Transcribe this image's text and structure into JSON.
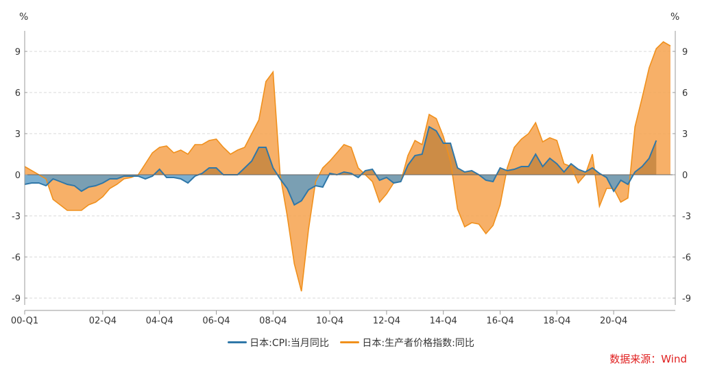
{
  "chart_data": {
    "type": "area",
    "title": "",
    "left_unit": "%",
    "right_unit": "%",
    "xlabel": "",
    "ylabel": "",
    "ylim": [
      -9.5,
      10.5
    ],
    "yticks": [
      9,
      6,
      3,
      0,
      -3,
      -6,
      -9
    ],
    "x_ticks": [
      "00-Q1",
      "02-Q4",
      "04-Q4",
      "06-Q4",
      "08-Q4",
      "10-Q4",
      "12-Q4",
      "14-Q4",
      "16-Q4",
      "18-Q4",
      "20-Q4"
    ],
    "grid": true,
    "legend_position": "bottom",
    "colors": {
      "cpi": "#2f77a8",
      "ppi": "#f0901c",
      "ppi_fill": "#f6a24e",
      "cpi_fill": "#5a9bc6",
      "overlap": "#c98a45"
    },
    "series": [
      {
        "name": "日本:CPI:当月同比",
        "points": [
          [
            2000.0,
            -0.7
          ],
          [
            2000.25,
            -0.6
          ],
          [
            2000.5,
            -0.6
          ],
          [
            2000.75,
            -0.8
          ],
          [
            2001.0,
            -0.3
          ],
          [
            2001.25,
            -0.5
          ],
          [
            2001.5,
            -0.7
          ],
          [
            2001.75,
            -0.8
          ],
          [
            2002.0,
            -1.2
          ],
          [
            2002.25,
            -0.9
          ],
          [
            2002.5,
            -0.8
          ],
          [
            2002.75,
            -0.6
          ],
          [
            2003.0,
            -0.3
          ],
          [
            2003.25,
            -0.3
          ],
          [
            2003.5,
            -0.1
          ],
          [
            2003.75,
            -0.1
          ],
          [
            2004.0,
            -0.1
          ],
          [
            2004.25,
            -0.3
          ],
          [
            2004.5,
            -0.1
          ],
          [
            2004.75,
            0.4
          ],
          [
            2005.0,
            -0.2
          ],
          [
            2005.25,
            -0.2
          ],
          [
            2005.5,
            -0.3
          ],
          [
            2005.75,
            -0.6
          ],
          [
            2006.0,
            -0.1
          ],
          [
            2006.25,
            0.1
          ],
          [
            2006.5,
            0.5
          ],
          [
            2006.75,
            0.5
          ],
          [
            2007.0,
            0.0
          ],
          [
            2007.25,
            0.0
          ],
          [
            2007.5,
            0.0
          ],
          [
            2007.75,
            0.5
          ],
          [
            2008.0,
            1.0
          ],
          [
            2008.25,
            2.0
          ],
          [
            2008.5,
            2.0
          ],
          [
            2008.75,
            0.5
          ],
          [
            2009.0,
            -0.3
          ],
          [
            2009.25,
            -1.0
          ],
          [
            2009.5,
            -2.2
          ],
          [
            2009.75,
            -1.9
          ],
          [
            2010.0,
            -1.1
          ],
          [
            2010.25,
            -0.8
          ],
          [
            2010.5,
            -0.9
          ],
          [
            2010.75,
            0.1
          ],
          [
            2011.0,
            0.0
          ],
          [
            2011.25,
            0.2
          ],
          [
            2011.5,
            0.1
          ],
          [
            2011.75,
            -0.2
          ],
          [
            2012.0,
            0.3
          ],
          [
            2012.25,
            0.4
          ],
          [
            2012.5,
            -0.4
          ],
          [
            2012.75,
            -0.2
          ],
          [
            2013.0,
            -0.6
          ],
          [
            2013.25,
            -0.5
          ],
          [
            2013.5,
            0.7
          ],
          [
            2013.75,
            1.4
          ],
          [
            2014.0,
            1.5
          ],
          [
            2014.25,
            3.5
          ],
          [
            2014.5,
            3.2
          ],
          [
            2014.75,
            2.3
          ],
          [
            2015.0,
            2.3
          ],
          [
            2015.25,
            0.5
          ],
          [
            2015.5,
            0.2
          ],
          [
            2015.75,
            0.3
          ],
          [
            2016.0,
            0.0
          ],
          [
            2016.25,
            -0.4
          ],
          [
            2016.5,
            -0.5
          ],
          [
            2016.75,
            0.5
          ],
          [
            2017.0,
            0.3
          ],
          [
            2017.25,
            0.4
          ],
          [
            2017.5,
            0.6
          ],
          [
            2017.75,
            0.6
          ],
          [
            2018.0,
            1.5
          ],
          [
            2018.25,
            0.6
          ],
          [
            2018.5,
            1.2
          ],
          [
            2018.75,
            0.8
          ],
          [
            2019.0,
            0.2
          ],
          [
            2019.25,
            0.8
          ],
          [
            2019.5,
            0.4
          ],
          [
            2019.75,
            0.2
          ],
          [
            2020.0,
            0.5
          ],
          [
            2020.25,
            0.1
          ],
          [
            2020.5,
            -0.2
          ],
          [
            2020.75,
            -1.2
          ],
          [
            2021.0,
            -0.4
          ],
          [
            2021.25,
            -0.7
          ],
          [
            2021.5,
            0.2
          ],
          [
            2021.75,
            0.6
          ],
          [
            2022.0,
            1.2
          ],
          [
            2022.25,
            2.5
          ]
        ]
      },
      {
        "name": "日本:生产者价格指数:同比",
        "points": [
          [
            2000.0,
            0.6
          ],
          [
            2000.25,
            0.3
          ],
          [
            2000.5,
            0.0
          ],
          [
            2000.75,
            -0.3
          ],
          [
            2001.0,
            -1.8
          ],
          [
            2001.25,
            -2.2
          ],
          [
            2001.5,
            -2.6
          ],
          [
            2001.75,
            -2.6
          ],
          [
            2002.0,
            -2.6
          ],
          [
            2002.25,
            -2.2
          ],
          [
            2002.5,
            -2.0
          ],
          [
            2002.75,
            -1.6
          ],
          [
            2003.0,
            -1.0
          ],
          [
            2003.25,
            -0.7
          ],
          [
            2003.5,
            -0.3
          ],
          [
            2003.75,
            -0.2
          ],
          [
            2004.0,
            0.0
          ],
          [
            2004.25,
            0.8
          ],
          [
            2004.5,
            1.6
          ],
          [
            2004.75,
            2.0
          ],
          [
            2005.0,
            2.1
          ],
          [
            2005.25,
            1.6
          ],
          [
            2005.5,
            1.8
          ],
          [
            2005.75,
            1.5
          ],
          [
            2006.0,
            2.2
          ],
          [
            2006.25,
            2.2
          ],
          [
            2006.5,
            2.5
          ],
          [
            2006.75,
            2.6
          ],
          [
            2007.0,
            2.0
          ],
          [
            2007.25,
            1.5
          ],
          [
            2007.5,
            1.8
          ],
          [
            2007.75,
            2.0
          ],
          [
            2008.0,
            3.0
          ],
          [
            2008.25,
            4.0
          ],
          [
            2008.5,
            6.8
          ],
          [
            2008.75,
            7.5
          ],
          [
            2009.0,
            0.0
          ],
          [
            2009.25,
            -3.0
          ],
          [
            2009.5,
            -6.5
          ],
          [
            2009.75,
            -8.5
          ],
          [
            2010.0,
            -4.0
          ],
          [
            2010.25,
            -0.5
          ],
          [
            2010.5,
            0.5
          ],
          [
            2010.75,
            1.0
          ],
          [
            2011.0,
            1.6
          ],
          [
            2011.25,
            2.2
          ],
          [
            2011.5,
            2.0
          ],
          [
            2011.75,
            0.5
          ],
          [
            2012.0,
            0.0
          ],
          [
            2012.25,
            -0.5
          ],
          [
            2012.5,
            -2.0
          ],
          [
            2012.75,
            -1.4
          ],
          [
            2013.0,
            -0.6
          ],
          [
            2013.25,
            -0.5
          ],
          [
            2013.5,
            1.4
          ],
          [
            2013.75,
            2.5
          ],
          [
            2014.0,
            2.2
          ],
          [
            2014.25,
            4.4
          ],
          [
            2014.5,
            4.1
          ],
          [
            2014.75,
            2.8
          ],
          [
            2015.0,
            1.0
          ],
          [
            2015.25,
            -2.5
          ],
          [
            2015.5,
            -3.8
          ],
          [
            2015.75,
            -3.5
          ],
          [
            2016.0,
            -3.6
          ],
          [
            2016.25,
            -4.3
          ],
          [
            2016.5,
            -3.7
          ],
          [
            2016.75,
            -2.2
          ],
          [
            2017.0,
            0.5
          ],
          [
            2017.25,
            2.0
          ],
          [
            2017.5,
            2.6
          ],
          [
            2017.75,
            3.0
          ],
          [
            2018.0,
            3.8
          ],
          [
            2018.25,
            2.4
          ],
          [
            2018.5,
            2.7
          ],
          [
            2018.75,
            2.5
          ],
          [
            2019.0,
            0.8
          ],
          [
            2019.25,
            0.6
          ],
          [
            2019.5,
            -0.6
          ],
          [
            2019.75,
            0.0
          ],
          [
            2020.0,
            1.5
          ],
          [
            2020.25,
            -2.3
          ],
          [
            2020.5,
            -1.0
          ],
          [
            2020.75,
            -1.0
          ],
          [
            2021.0,
            -2.0
          ],
          [
            2021.25,
            -1.7
          ],
          [
            2021.5,
            3.5
          ],
          [
            2021.75,
            5.6
          ],
          [
            2022.0,
            7.8
          ],
          [
            2022.25,
            9.2
          ],
          [
            2022.5,
            9.7
          ],
          [
            2022.75,
            9.4
          ]
        ]
      }
    ]
  },
  "source": "数据来源：Wind"
}
